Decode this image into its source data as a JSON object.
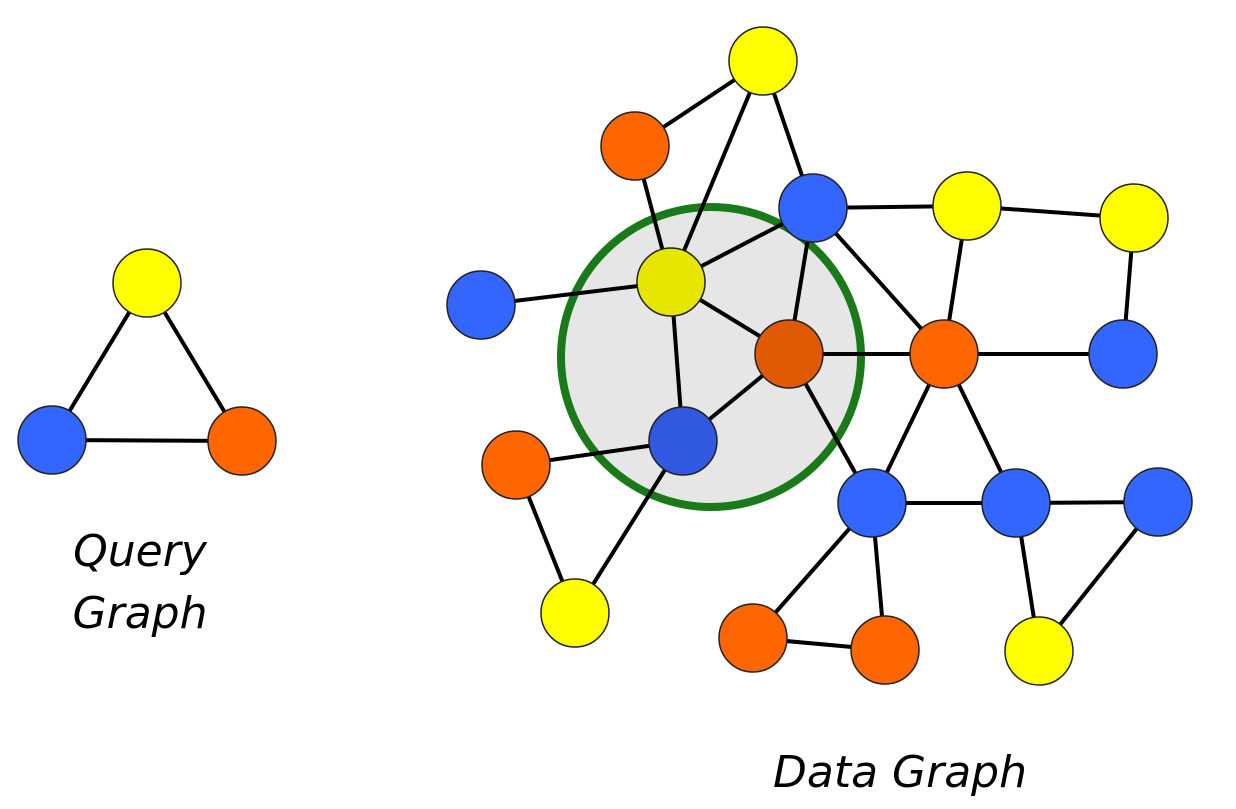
{
  "colors": {
    "yellow": "#FFFF00",
    "blue": "#3366FF",
    "orange": "#FF6600",
    "highlight_yellow": "#E6E600",
    "highlight_blue": "#3158E0",
    "highlight_orange": "#E05A05",
    "match_fill": "#E6E6E6",
    "match_ring": "#1A7A1A"
  },
  "query_graph": {
    "caption_line1": "Query",
    "caption_line2": "Graph",
    "nodes": [
      {
        "id": "q1",
        "color": "yellow"
      },
      {
        "id": "q2",
        "color": "blue"
      },
      {
        "id": "q3",
        "color": "orange"
      }
    ],
    "edges": [
      [
        "q1",
        "q2"
      ],
      [
        "q1",
        "q3"
      ],
      [
        "q2",
        "q3"
      ]
    ]
  },
  "data_graph": {
    "caption": "Data Graph",
    "nodes": [
      {
        "id": "y1",
        "color": "yellow"
      },
      {
        "id": "o1",
        "color": "orange"
      },
      {
        "id": "b1",
        "color": "blue"
      },
      {
        "id": "y2",
        "color": "yellow"
      },
      {
        "id": "y3",
        "color": "yellow"
      },
      {
        "id": "bL",
        "color": "blue"
      },
      {
        "id": "mY",
        "color": "highlight_yellow",
        "matched": true
      },
      {
        "id": "mO",
        "color": "highlight_orange",
        "matched": true
      },
      {
        "id": "mB",
        "color": "highlight_blue",
        "matched": true
      },
      {
        "id": "o2",
        "color": "orange"
      },
      {
        "id": "b2",
        "color": "blue"
      },
      {
        "id": "oL",
        "color": "orange"
      },
      {
        "id": "b3",
        "color": "blue"
      },
      {
        "id": "b4",
        "color": "blue"
      },
      {
        "id": "b5",
        "color": "blue"
      },
      {
        "id": "y4",
        "color": "yellow"
      },
      {
        "id": "o3",
        "color": "orange"
      },
      {
        "id": "o4",
        "color": "orange"
      },
      {
        "id": "y5",
        "color": "yellow"
      }
    ],
    "edges": [
      [
        "y1",
        "o1"
      ],
      [
        "y1",
        "mY"
      ],
      [
        "y1",
        "b1"
      ],
      [
        "o1",
        "mY"
      ],
      [
        "b1",
        "mY"
      ],
      [
        "b1",
        "y2"
      ],
      [
        "y2",
        "y3"
      ],
      [
        "b1",
        "mO"
      ],
      [
        "b1",
        "o2"
      ],
      [
        "y2",
        "o2"
      ],
      [
        "y3",
        "b2"
      ],
      [
        "o2",
        "b2"
      ],
      [
        "bL",
        "mY"
      ],
      [
        "mY",
        "mO"
      ],
      [
        "mY",
        "mB"
      ],
      [
        "mO",
        "mB"
      ],
      [
        "mO",
        "o2"
      ],
      [
        "mO",
        "b3"
      ],
      [
        "oL",
        "mB"
      ],
      [
        "oL",
        "y4"
      ],
      [
        "mB",
        "y4"
      ],
      [
        "o2",
        "b3"
      ],
      [
        "o2",
        "b4"
      ],
      [
        "b3",
        "b4"
      ],
      [
        "b4",
        "b5"
      ],
      [
        "b3",
        "o3"
      ],
      [
        "b3",
        "o4"
      ],
      [
        "o3",
        "o4"
      ],
      [
        "b4",
        "y5"
      ],
      [
        "b5",
        "y5"
      ]
    ]
  }
}
